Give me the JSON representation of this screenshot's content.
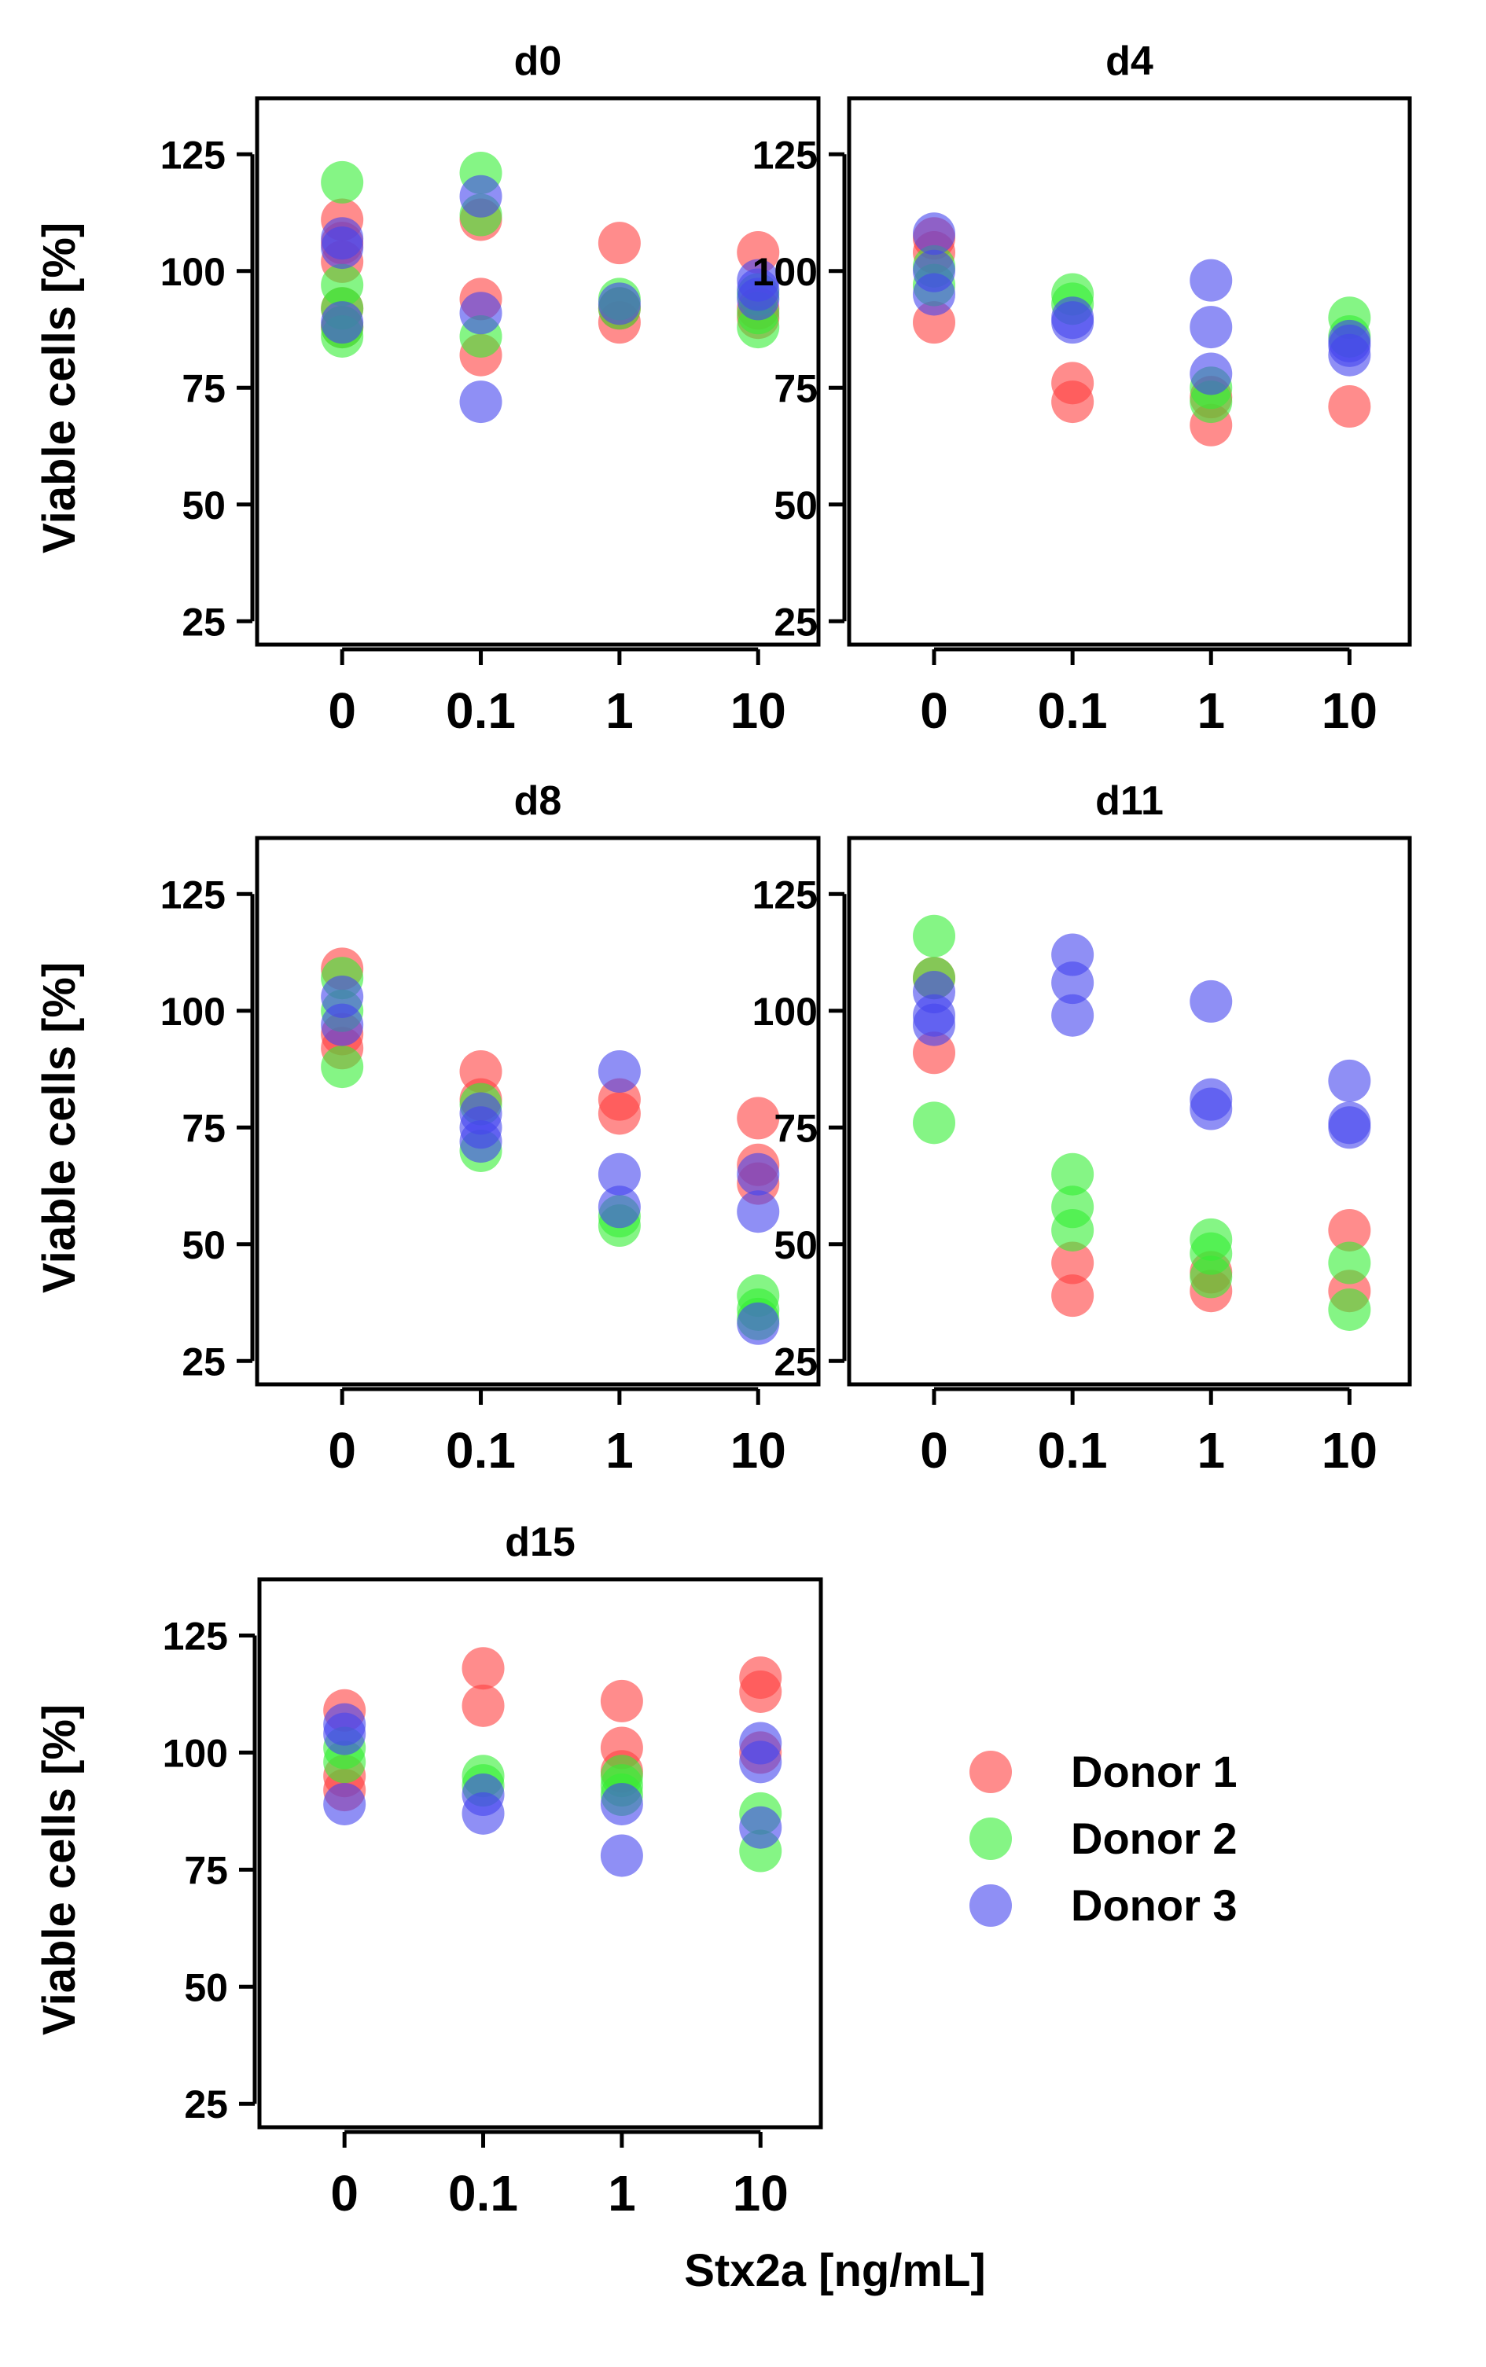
{
  "figure": {
    "x_axis_title": "Stx2a [ng/mL]",
    "y_axis_title": "Viable cells [%]"
  },
  "colors": {
    "Donor 1": "#ff4040",
    "Donor 2": "#33ee33",
    "Donor 3": "#4444ee"
  },
  "legend": {
    "position": "right of d15 panel",
    "items": [
      "Donor 1",
      "Donor 2",
      "Donor 3"
    ]
  },
  "chart_data": [
    {
      "type": "scatter",
      "title": "d0",
      "categories": [
        "0",
        "0.1",
        "1",
        "10"
      ],
      "ylim": [
        20,
        137
      ],
      "yticks": [
        25,
        50,
        75,
        100,
        125
      ],
      "xlabel": "",
      "ylabel": "Viable cells [%]",
      "series": [
        {
          "name": "Donor 1",
          "points": [
            [
              0,
              111
            ],
            [
              0,
              106
            ],
            [
              0,
              102
            ],
            [
              0,
              92
            ],
            [
              0,
              88
            ],
            [
              1,
              111
            ],
            [
              1,
              94
            ],
            [
              1,
              82
            ],
            [
              2,
              106
            ],
            [
              2,
              89
            ],
            [
              2,
              92
            ],
            [
              3,
              104
            ],
            [
              3,
              92
            ],
            [
              3,
              90
            ]
          ]
        },
        {
          "name": "Donor 2",
          "points": [
            [
              0,
              119
            ],
            [
              0,
              97
            ],
            [
              0,
              86
            ],
            [
              0,
              88
            ],
            [
              0,
              92
            ],
            [
              1,
              121
            ],
            [
              1,
              112
            ],
            [
              1,
              86
            ],
            [
              2,
              94
            ],
            [
              2,
              92
            ],
            [
              3,
              88
            ],
            [
              3,
              95
            ],
            [
              3,
              91
            ]
          ]
        },
        {
          "name": "Donor 3",
          "points": [
            [
              0,
              107
            ],
            [
              0,
              105
            ],
            [
              0,
              89
            ],
            [
              1,
              116
            ],
            [
              1,
              91
            ],
            [
              1,
              72
            ],
            [
              2,
              93
            ],
            [
              3,
              98
            ],
            [
              3,
              96
            ],
            [
              3,
              94
            ]
          ]
        }
      ]
    },
    {
      "type": "scatter",
      "title": "d4",
      "categories": [
        "0",
        "0.1",
        "1",
        "10"
      ],
      "ylim": [
        20,
        137
      ],
      "yticks": [
        25,
        50,
        75,
        100,
        125
      ],
      "xlabel": "",
      "ylabel": "",
      "series": [
        {
          "name": "Donor 1",
          "points": [
            [
              0,
              107
            ],
            [
              0,
              104
            ],
            [
              0,
              89
            ],
            [
              1,
              76
            ],
            [
              1,
              72
            ],
            [
              2,
              67
            ],
            [
              2,
              73
            ],
            [
              3,
              71
            ]
          ]
        },
        {
          "name": "Donor 2",
          "points": [
            [
              0,
              101
            ],
            [
              0,
              97
            ],
            [
              1,
              95
            ],
            [
              1,
              93
            ],
            [
              2,
              75
            ],
            [
              2,
              72
            ],
            [
              3,
              90
            ],
            [
              3,
              86
            ]
          ]
        },
        {
          "name": "Donor 3",
          "points": [
            [
              0,
              108
            ],
            [
              0,
              100
            ],
            [
              0,
              95
            ],
            [
              1,
              90
            ],
            [
              1,
              89
            ],
            [
              2,
              98
            ],
            [
              2,
              88
            ],
            [
              2,
              78
            ],
            [
              3,
              85
            ],
            [
              3,
              84
            ],
            [
              3,
              82
            ]
          ]
        }
      ]
    },
    {
      "type": "scatter",
      "title": "d8",
      "categories": [
        "0",
        "0.1",
        "1",
        "10"
      ],
      "ylim": [
        20,
        137
      ],
      "yticks": [
        25,
        50,
        75,
        100,
        125
      ],
      "xlabel": "",
      "ylabel": "Viable cells [%]",
      "series": [
        {
          "name": "Donor 1",
          "points": [
            [
              0,
              109
            ],
            [
              0,
              95
            ],
            [
              0,
              92
            ],
            [
              1,
              87
            ],
            [
              1,
              81
            ],
            [
              2,
              81
            ],
            [
              2,
              78
            ],
            [
              3,
              77
            ],
            [
              3,
              67
            ],
            [
              3,
              63
            ]
          ]
        },
        {
          "name": "Donor 2",
          "points": [
            [
              0,
              107
            ],
            [
              0,
              100
            ],
            [
              0,
              88
            ],
            [
              1,
              80
            ],
            [
              1,
              70
            ],
            [
              2,
              56
            ],
            [
              2,
              54
            ],
            [
              3,
              39
            ],
            [
              3,
              36
            ],
            [
              3,
              34
            ]
          ]
        },
        {
          "name": "Donor 3",
          "points": [
            [
              0,
              103
            ],
            [
              0,
              97
            ],
            [
              1,
              78
            ],
            [
              1,
              75
            ],
            [
              1,
              72
            ],
            [
              2,
              87
            ],
            [
              2,
              65
            ],
            [
              2,
              58
            ],
            [
              3,
              65
            ],
            [
              3,
              57
            ],
            [
              3,
              33
            ]
          ]
        }
      ]
    },
    {
      "type": "scatter",
      "title": "d11",
      "categories": [
        "0",
        "0.1",
        "1",
        "10"
      ],
      "ylim": [
        20,
        137
      ],
      "yticks": [
        25,
        50,
        75,
        100,
        125
      ],
      "xlabel": "",
      "ylabel": "",
      "series": [
        {
          "name": "Donor 1",
          "points": [
            [
              0,
              107
            ],
            [
              0,
              91
            ],
            [
              1,
              46
            ],
            [
              1,
              39
            ],
            [
              2,
              44
            ],
            [
              2,
              40
            ],
            [
              3,
              53
            ],
            [
              3,
              40
            ]
          ]
        },
        {
          "name": "Donor 2",
          "points": [
            [
              0,
              116
            ],
            [
              0,
              107
            ],
            [
              0,
              76
            ],
            [
              1,
              65
            ],
            [
              1,
              58
            ],
            [
              1,
              53
            ],
            [
              2,
              51
            ],
            [
              2,
              48
            ],
            [
              2,
              43
            ],
            [
              3,
              46
            ],
            [
              3,
              36
            ]
          ]
        },
        {
          "name": "Donor 3",
          "points": [
            [
              0,
              104
            ],
            [
              0,
              99
            ],
            [
              0,
              97
            ],
            [
              1,
              112
            ],
            [
              1,
              106
            ],
            [
              1,
              99
            ],
            [
              2,
              102
            ],
            [
              2,
              81
            ],
            [
              2,
              79
            ],
            [
              3,
              85
            ],
            [
              3,
              76
            ],
            [
              3,
              75
            ]
          ]
        }
      ]
    },
    {
      "type": "scatter",
      "title": "d15",
      "categories": [
        "0",
        "0.1",
        "1",
        "10"
      ],
      "ylim": [
        20,
        137
      ],
      "yticks": [
        25,
        50,
        75,
        100,
        125
      ],
      "xlabel": "Stx2a [ng/mL]",
      "ylabel": "Viable cells [%]",
      "series": [
        {
          "name": "Donor 1",
          "points": [
            [
              0,
              109
            ],
            [
              0,
              95
            ],
            [
              0,
              92
            ],
            [
              1,
              118
            ],
            [
              1,
              110
            ],
            [
              2,
              111
            ],
            [
              2,
              101
            ],
            [
              2,
              96
            ],
            [
              3,
              116
            ],
            [
              3,
              113
            ],
            [
              3,
              100
            ]
          ]
        },
        {
          "name": "Donor 2",
          "points": [
            [
              0,
              101
            ],
            [
              0,
              98
            ],
            [
              1,
              95
            ],
            [
              1,
              93
            ],
            [
              2,
              95
            ],
            [
              2,
              93
            ],
            [
              2,
              91
            ],
            [
              3,
              87
            ],
            [
              3,
              79
            ]
          ]
        },
        {
          "name": "Donor 3",
          "points": [
            [
              0,
              106
            ],
            [
              0,
              104
            ],
            [
              0,
              89
            ],
            [
              1,
              91
            ],
            [
              1,
              87
            ],
            [
              2,
              89
            ],
            [
              2,
              78
            ],
            [
              3,
              102
            ],
            [
              3,
              98
            ],
            [
              3,
              84
            ]
          ]
        }
      ]
    }
  ]
}
